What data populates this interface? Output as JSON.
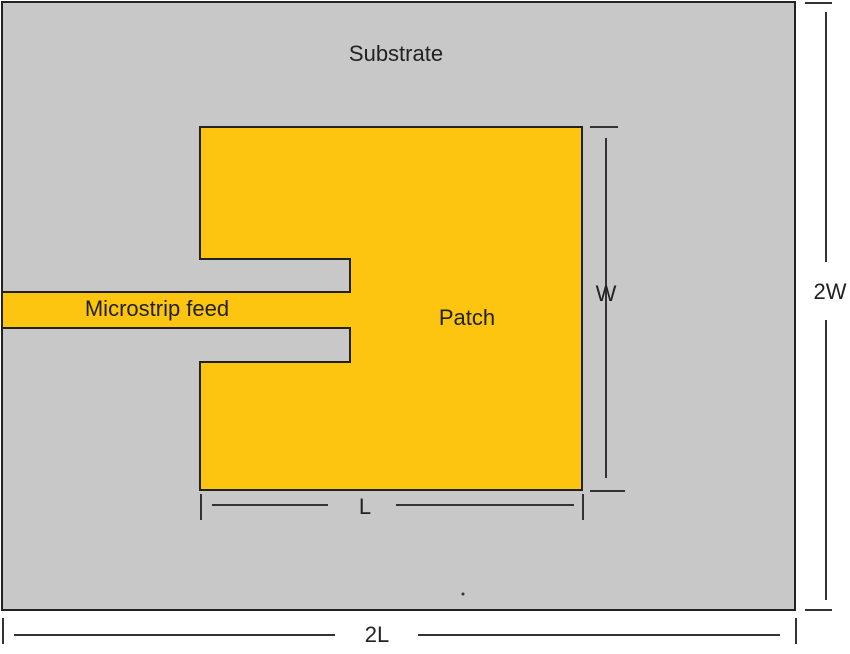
{
  "labels": {
    "substrate": "Substrate",
    "feed": "Microstrip feed",
    "patch": "Patch",
    "dim_w": "W",
    "dim_2w": "2W",
    "dim_l": "L",
    "dim_2l": "2L"
  },
  "colors": {
    "substrate_fill": "#c8c8c8",
    "patch_fill": "#fdc50f",
    "outline": "#222222"
  }
}
